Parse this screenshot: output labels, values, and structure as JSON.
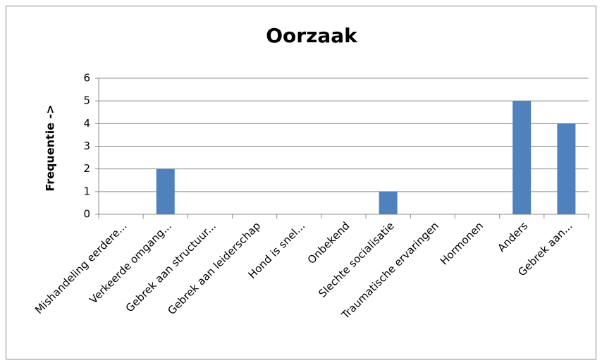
{
  "chart_data": {
    "type": "bar",
    "title": "Oorzaak",
    "y_label": "Frequentie ->",
    "categories": [
      "Mishandeling eerdere...",
      "Verkeerde omgang...",
      "Gebrek aan structuur...",
      "Gebrek aan leiderschap",
      "Hond is snel...",
      "Onbekend",
      "Slechte socialisatie",
      "Traumatische ervaringen",
      "Hormonen",
      "Anders",
      "Gebrek aan..."
    ],
    "values": [
      0,
      2,
      0,
      0,
      0,
      0,
      1,
      0,
      0,
      5,
      4
    ],
    "color": "#4f81bd",
    "ylim": [
      0,
      6
    ],
    "yticks": [
      0,
      1,
      2,
      3,
      4,
      5,
      6
    ],
    "grid": true
  }
}
